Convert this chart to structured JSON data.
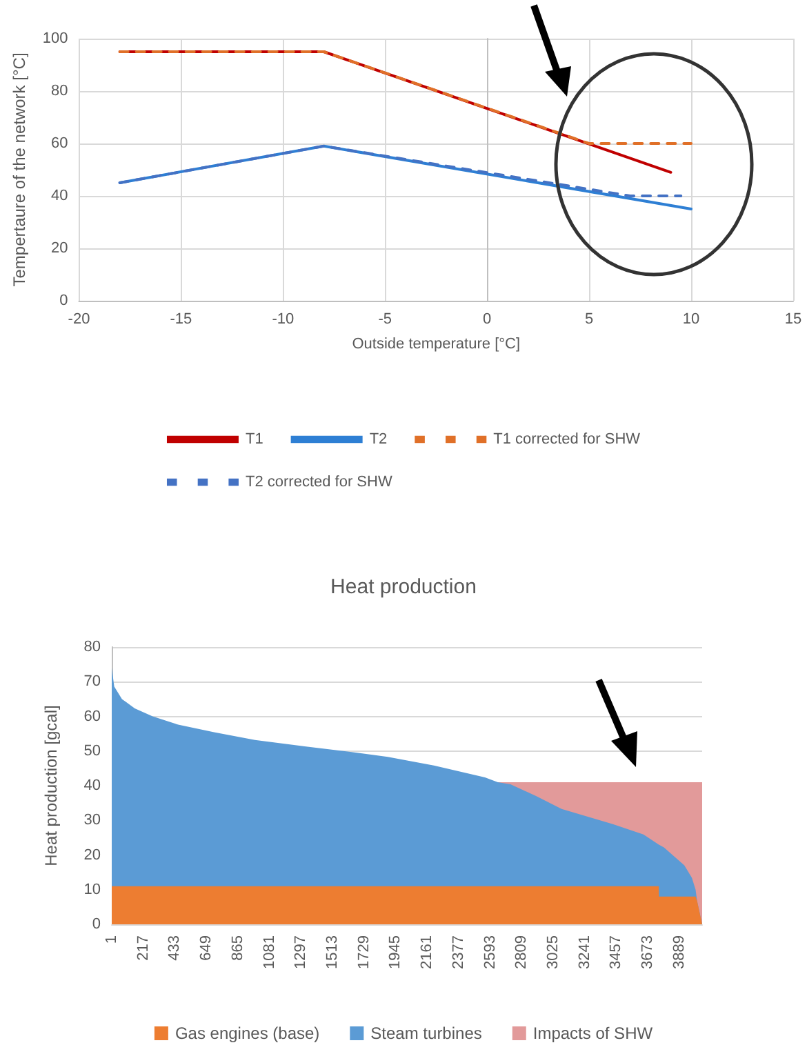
{
  "chart_data": [
    {
      "type": "line",
      "xlabel": "Outside temperature [°C]",
      "ylabel": "Tempertaure of the network [°C]",
      "xlim": [
        -20,
        15
      ],
      "xticks": [
        -20,
        -15,
        -10,
        -5,
        0,
        5,
        10,
        15
      ],
      "ylim": [
        0,
        100
      ],
      "yticks": [
        0,
        20,
        40,
        60,
        80,
        100
      ],
      "grid": true,
      "legend": "bottom",
      "marker": "none",
      "series": [
        {
          "name": "T1",
          "color": "#c00000",
          "x": [
            -18,
            -8,
            9
          ],
          "values": [
            95,
            95,
            49
          ],
          "line_style": "solid"
        },
        {
          "name": "T2",
          "color": "#2e7fd4",
          "x": [
            -18,
            -8,
            10
          ],
          "values": [
            45,
            59,
            35
          ],
          "line_style": "solid"
        },
        {
          "name": "T1 corrected for SHW",
          "color": "#e07028",
          "x": [
            -18,
            -8,
            5,
            10
          ],
          "values": [
            95,
            95,
            60,
            60
          ],
          "line_style": "dashed"
        },
        {
          "name": "T2 corrected for SHW",
          "color": "#4472c4",
          "x": [
            -18,
            -8,
            7,
            9.5
          ],
          "values": [
            45,
            59,
            40,
            40
          ],
          "line_style": "dashed"
        }
      ]
    },
    {
      "type": "area",
      "title": "Heat production",
      "ylabel": "Heat production [gcal]",
      "stacked": true,
      "xlim": [
        1,
        4046
      ],
      "xticks": [
        1,
        217,
        433,
        649,
        865,
        1081,
        1297,
        1513,
        1729,
        1945,
        2161,
        2377,
        2593,
        2809,
        3025,
        3241,
        3457,
        3673,
        3889
      ],
      "ylim": [
        0,
        80
      ],
      "yticks": [
        0,
        10,
        20,
        30,
        40,
        50,
        60,
        70,
        80
      ],
      "grid": "y",
      "legend": "bottom",
      "x": [
        1,
        18,
        71,
        159,
        281,
        456,
        702,
        982,
        1332,
        1682,
        1892,
        2208,
        2558,
        2646,
        2733,
        2908,
        3083,
        3434,
        3644,
        3749,
        3750,
        3784,
        3924,
        3976,
        4001,
        4011,
        4046
      ],
      "series": [
        {
          "name": "Gas engines (base)",
          "color": "#ed7d31",
          "values": [
            11,
            11,
            11,
            11,
            11,
            11,
            11,
            11,
            11,
            11,
            11,
            11,
            11,
            11,
            11,
            11,
            11,
            11,
            11,
            11,
            8,
            8,
            8,
            8,
            8,
            6.8,
            0
          ]
        },
        {
          "name": "Steam turbines",
          "color": "#5b9bd5",
          "values": [
            63,
            57.6,
            54,
            51.3,
            49,
            46.6,
            44.4,
            42.2,
            40.3,
            38.5,
            37.3,
            34.8,
            31.4,
            30,
            29.4,
            26,
            22.3,
            17.9,
            14.9,
            12,
            15,
            14.2,
            9,
            5.4,
            2,
            0,
            0
          ]
        },
        {
          "name": "Impacts of SHW",
          "color": "#e29a9a",
          "values": [
            null,
            null,
            null,
            null,
            null,
            null,
            null,
            null,
            null,
            null,
            null,
            null,
            null,
            0,
            0.6,
            4,
            7.7,
            12.1,
            15.1,
            18,
            18,
            18.8,
            24,
            27.6,
            31,
            34.2,
            41
          ]
        }
      ]
    }
  ]
}
